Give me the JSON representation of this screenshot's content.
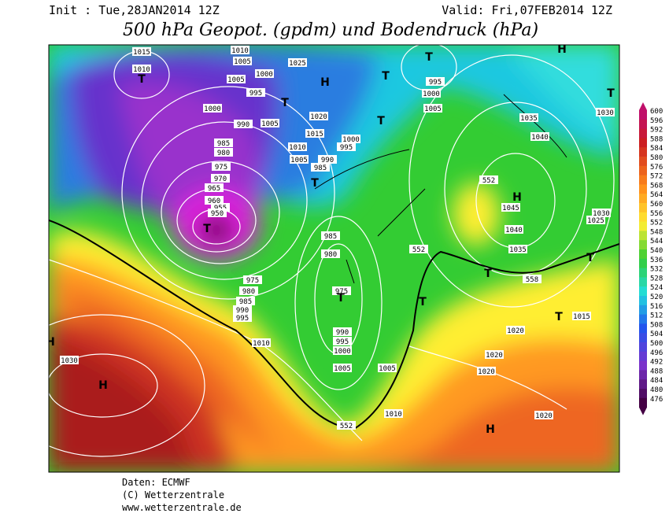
{
  "header": {
    "init": "Init : Tue,28JAN2014 12Z",
    "valid": "Valid: Fri,07FEB2014 12Z",
    "title": "500 hPa Geopot. (gpdm) und Bodendruck (hPa)"
  },
  "map": {
    "pressure_labels": [
      1015,
      1010,
      1010,
      1005,
      1005,
      1000,
      1025,
      995,
      1000,
      990,
      1005,
      1020,
      1015,
      1010,
      1005,
      1000,
      995,
      990,
      985,
      985,
      980,
      975,
      970,
      965,
      960,
      955,
      950,
      985,
      980,
      975,
      975,
      980,
      985,
      990,
      995,
      1010,
      990,
      995,
      1000,
      1005,
      1005,
      1010,
      1030,
      995,
      1000,
      1005,
      1035,
      1040,
      1045,
      1040,
      1035,
      1030,
      1025,
      1030,
      1020,
      1020,
      1020,
      1015,
      1020
    ],
    "thickness_labels": [
      552,
      552,
      558,
      552
    ],
    "centers": [
      "T",
      "T",
      "T",
      "T",
      "T",
      "T",
      "T",
      "T",
      "T",
      "T",
      "T",
      "T",
      "T",
      "H",
      "H",
      "H",
      "H",
      "H",
      "H"
    ]
  },
  "colorbar": {
    "labels": [
      600,
      596,
      592,
      588,
      584,
      580,
      576,
      572,
      568,
      564,
      560,
      556,
      552,
      548,
      544,
      540,
      536,
      532,
      528,
      524,
      520,
      516,
      512,
      508,
      504,
      500,
      496,
      492,
      488,
      484,
      480,
      476
    ]
  },
  "footer": {
    "source": "Daten: ECMWF",
    "copyright": "(C) Wetterzentrale",
    "url": "www.wetterzentrale.de"
  }
}
